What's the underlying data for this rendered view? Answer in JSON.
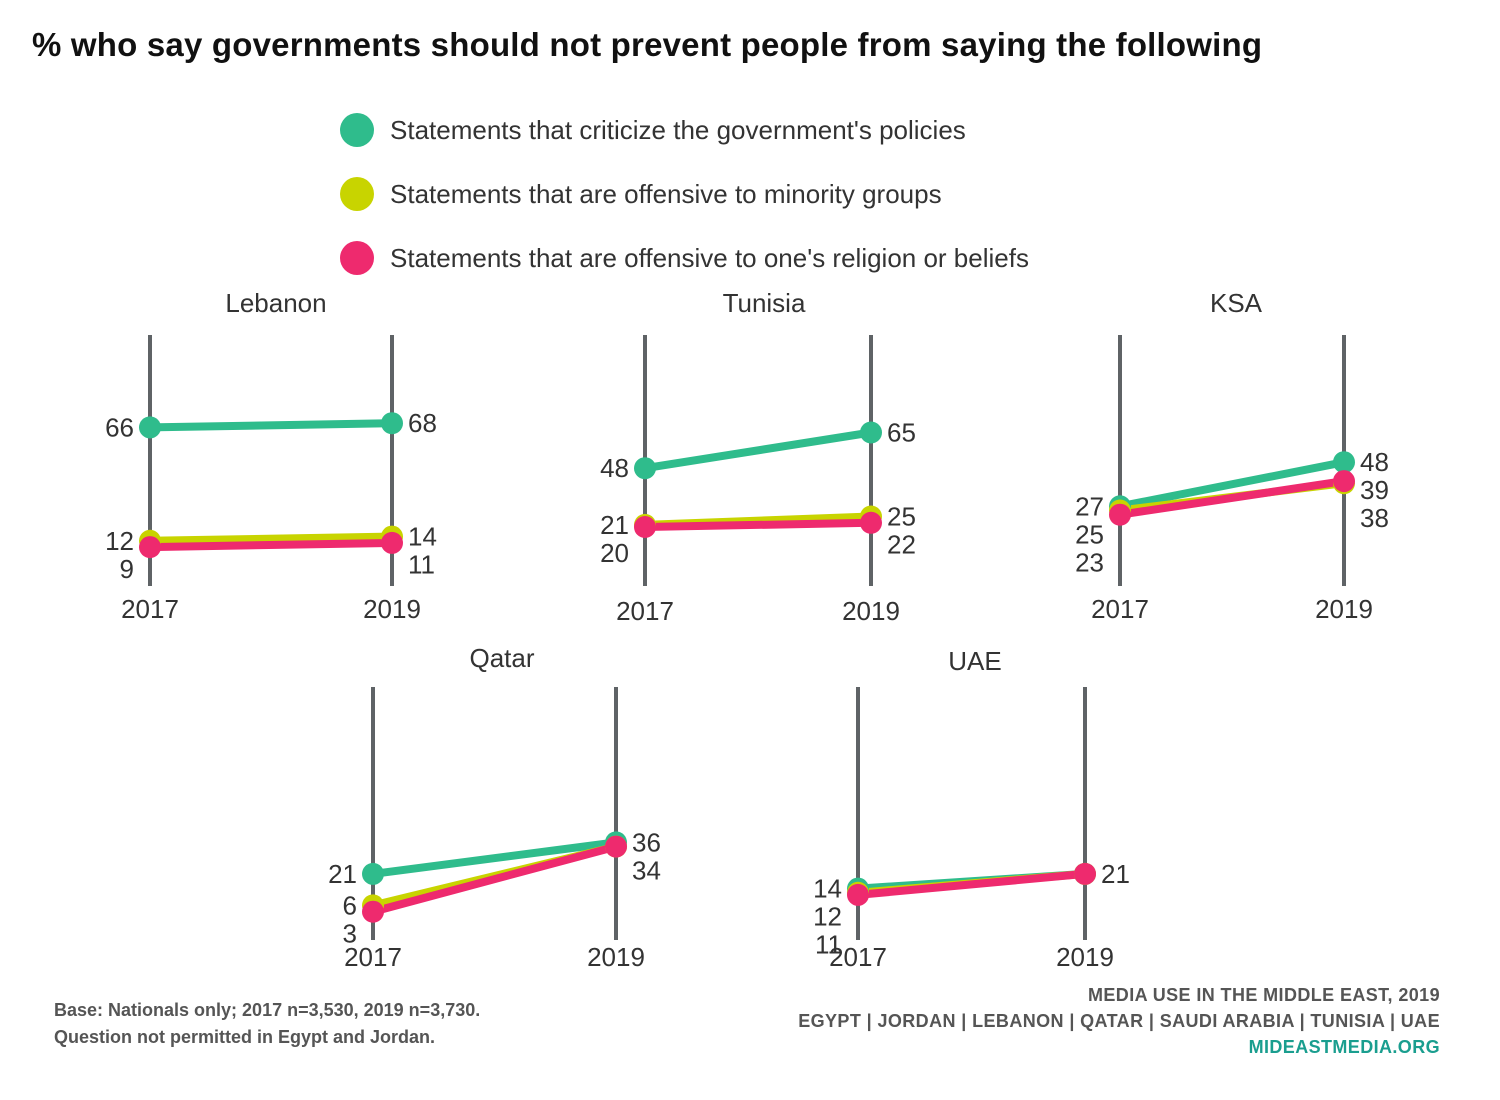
{
  "title": "% who say governments should not prevent people from saying the following",
  "legend": [
    {
      "label": "Statements that criticize the government's policies",
      "color": "#2fbc8c"
    },
    {
      "label": "Statements that are offensive to minority groups",
      "color": "#c8d400"
    },
    {
      "label": "Statements that are offensive to one's religion or beliefs",
      "color": "#ee2a6e"
    }
  ],
  "footer": {
    "base_line1": "Base: Nationals only; 2017 n=3,530, 2019 n=3,730.",
    "base_line2": "Question not permitted in Egypt and Jordan.",
    "source_line1": "MEDIA USE IN THE MIDDLE EAST, 2019",
    "source_line2": "EGYPT | JORDAN | LEBANON | QATAR | SAUDI ARABIA | TUNISIA | UAE",
    "site": "MIDEASTMEDIA.ORG"
  },
  "chart_data": {
    "type": "line",
    "x": [
      "2017",
      "2019"
    ],
    "series_names": [
      "Statements that criticize the government's policies",
      "Statements that are offensive to minority groups",
      "Statements that are offensive to one's religion or beliefs"
    ],
    "series_colors": [
      "#2fbc8c",
      "#c8d400",
      "#ee2a6e"
    ],
    "panels": [
      {
        "title": "Lebanon",
        "values": [
          [
            66,
            68
          ],
          [
            12,
            14
          ],
          [
            9,
            11
          ]
        ]
      },
      {
        "title": "Tunisia",
        "values": [
          [
            48,
            65
          ],
          [
            21,
            25
          ],
          [
            20,
            22
          ]
        ]
      },
      {
        "title": "KSA",
        "values": [
          [
            27,
            48
          ],
          [
            25,
            38
          ],
          [
            23,
            39
          ]
        ]
      },
      {
        "title": "Qatar",
        "values": [
          [
            21,
            36
          ],
          [
            6,
            34
          ],
          [
            3,
            34
          ]
        ]
      },
      {
        "title": "UAE",
        "values": [
          [
            14,
            21
          ],
          [
            12,
            21
          ],
          [
            11,
            21
          ]
        ]
      }
    ]
  }
}
